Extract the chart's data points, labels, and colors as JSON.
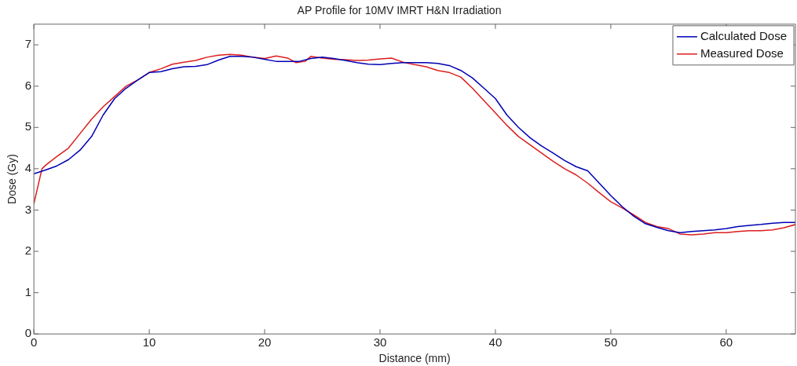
{
  "chart_data": {
    "type": "line",
    "title": "AP Profile for 10MV IMRT H&N Irradiation",
    "xlabel": "Distance (mm)",
    "ylabel": "Dose (Gy)",
    "xlim": [
      0,
      66
    ],
    "xticks": [
      0,
      10,
      20,
      30,
      40,
      50,
      60
    ],
    "ylim": [
      0,
      7.5
    ],
    "yticks": [
      0,
      1,
      2,
      3,
      4,
      5,
      6,
      7
    ],
    "grid": false,
    "legend": "top right",
    "marker": "none",
    "line_style": "solid",
    "series": [
      {
        "name": "Calculated Dose",
        "color": "#0000b4",
        "x": [
          0,
          1,
          2,
          3,
          4,
          5,
          6,
          7,
          8,
          9,
          10,
          11,
          12,
          13,
          14,
          15,
          16,
          17,
          18,
          19,
          20,
          21,
          22,
          23,
          24,
          25,
          26,
          27,
          28,
          29,
          30,
          31,
          32,
          33,
          34,
          35,
          36,
          37,
          38,
          39,
          40,
          41,
          42,
          43,
          44,
          45,
          46,
          47,
          48,
          49,
          50,
          51,
          52,
          53,
          54,
          55,
          56,
          57,
          58,
          59,
          60,
          61,
          62,
          63,
          64,
          65,
          66
        ],
        "values": [
          3.88,
          3.97,
          4.07,
          4.22,
          4.45,
          4.78,
          5.3,
          5.7,
          5.95,
          6.15,
          6.33,
          6.35,
          6.42,
          6.47,
          6.48,
          6.52,
          6.63,
          6.72,
          6.72,
          6.7,
          6.65,
          6.6,
          6.6,
          6.6,
          6.67,
          6.7,
          6.67,
          6.62,
          6.57,
          6.53,
          6.52,
          6.55,
          6.57,
          6.57,
          6.57,
          6.55,
          6.5,
          6.38,
          6.2,
          5.95,
          5.7,
          5.3,
          5.0,
          4.75,
          4.55,
          4.38,
          4.2,
          4.05,
          3.95,
          3.65,
          3.35,
          3.08,
          2.85,
          2.67,
          2.58,
          2.5,
          2.45,
          2.48,
          2.5,
          2.52,
          2.55,
          2.6,
          2.63,
          2.65,
          2.68,
          2.7,
          2.7
        ]
      },
      {
        "name": "Measured Dose",
        "color": "#dc1e1e",
        "x": [
          0,
          0.7,
          1,
          2,
          3,
          4,
          5,
          6,
          7,
          8,
          9,
          10,
          11,
          12,
          13,
          14,
          15,
          16,
          17,
          18,
          19,
          20,
          21,
          22,
          22.7,
          23.5,
          24,
          25,
          26,
          27,
          28,
          29,
          30,
          31,
          32,
          33,
          34,
          35,
          36,
          37,
          38,
          39,
          40,
          41,
          42,
          43,
          44,
          45,
          46,
          47,
          48,
          49,
          50,
          51,
          52,
          53,
          54,
          55,
          56,
          57,
          58,
          59,
          60,
          61,
          62,
          63,
          64,
          65,
          66
        ],
        "values": [
          3.15,
          4.0,
          4.08,
          4.3,
          4.5,
          4.85,
          5.2,
          5.5,
          5.75,
          6.0,
          6.15,
          6.33,
          6.42,
          6.53,
          6.58,
          6.62,
          6.7,
          6.75,
          6.77,
          6.75,
          6.7,
          6.67,
          6.73,
          6.68,
          6.57,
          6.6,
          6.72,
          6.68,
          6.65,
          6.64,
          6.62,
          6.63,
          6.66,
          6.68,
          6.58,
          6.52,
          6.47,
          6.38,
          6.33,
          6.22,
          5.95,
          5.65,
          5.35,
          5.05,
          4.78,
          4.58,
          4.38,
          4.18,
          4.0,
          3.85,
          3.65,
          3.42,
          3.2,
          3.05,
          2.88,
          2.7,
          2.6,
          2.55,
          2.42,
          2.4,
          2.42,
          2.45,
          2.45,
          2.48,
          2.5,
          2.5,
          2.52,
          2.57,
          2.65
        ]
      }
    ]
  }
}
